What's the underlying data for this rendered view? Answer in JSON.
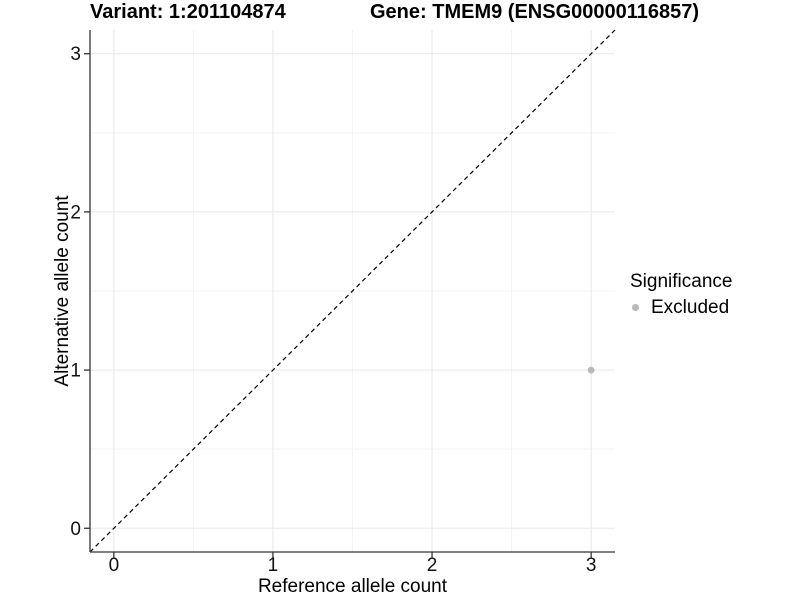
{
  "titles": {
    "variant": "Variant: 1:201104874",
    "gene": "Gene: TMEM9 (ENSG00000116857)"
  },
  "legend": {
    "title": "Significance",
    "items": [
      {
        "label": "Excluded",
        "color": "#b8b8b8"
      }
    ]
  },
  "chart_data": {
    "type": "scatter",
    "title": "Variant: 1:201104874  Gene: TMEM9 (ENSG00000116857)",
    "xlabel": "Reference allele count",
    "ylabel": "Alternative allele count",
    "xlim": [
      -0.15,
      3.15
    ],
    "ylim": [
      -0.15,
      3.15
    ],
    "x_ticks": [
      0,
      1,
      2,
      3
    ],
    "y_ticks": [
      0,
      1,
      2,
      3
    ],
    "x_minor_ticks": [
      0.5,
      1.5,
      2.5
    ],
    "y_minor_ticks": [
      0.5,
      1.5,
      2.5
    ],
    "grid": "major+minor",
    "legend_position": "right",
    "legend_title": "Significance",
    "series": [
      {
        "name": "Excluded",
        "color": "#b8b8b8",
        "point_radius": 3.4,
        "points": [
          {
            "x": 3,
            "y": 1
          }
        ]
      }
    ],
    "reference_line": {
      "type": "identity",
      "equation": "y = x",
      "style": "dashed",
      "color": "#000000"
    }
  },
  "colors": {
    "background": "#ffffff",
    "grid_major": "#e8e8e8",
    "grid_minor": "#f3f3f3",
    "axis_line": "#333333",
    "tick_mark": "#333333",
    "tick_text": "#111111",
    "point": "#b8b8b8",
    "reference_line": "#000000"
  }
}
